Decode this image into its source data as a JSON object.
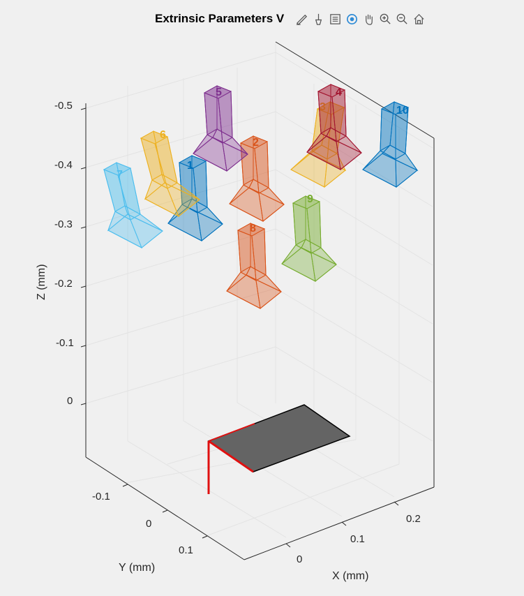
{
  "chart_data": {
    "type": "3d-extrinsics",
    "title": "Extrinsic Parameters V",
    "xlabel": "X (mm)",
    "ylabel": "Y (mm)",
    "zlabel": "Z (mm)",
    "x_ticks": [
      "0",
      "0.1",
      "0.2"
    ],
    "y_ticks": [
      "-0.1",
      "0",
      "0.1"
    ],
    "z_ticks": [
      "-0.5",
      "-0.4",
      "-0.3",
      "-0.2",
      "-0.1",
      "0"
    ],
    "grid": true,
    "cameras": [
      {
        "id": "1",
        "color": "#0072bd"
      },
      {
        "id": "2",
        "color": "#d95319"
      },
      {
        "id": "3",
        "color": "#edb120"
      },
      {
        "id": "4",
        "color": "#a2142f"
      },
      {
        "id": "5",
        "color": "#7e2f8e"
      },
      {
        "id": "6",
        "color": "#edb120"
      },
      {
        "id": "7",
        "color": "#4dbeee"
      },
      {
        "id": "8",
        "color": "#d95319"
      },
      {
        "id": "9",
        "color": "#77ac30"
      },
      {
        "id": "10",
        "color": "#0072bd"
      }
    ]
  },
  "toolbar": {
    "icons": [
      "edit-icon",
      "brush-icon",
      "legend-icon",
      "rotate-icon",
      "pan-icon",
      "zoom-in-icon",
      "zoom-out-icon",
      "home-icon"
    ]
  }
}
